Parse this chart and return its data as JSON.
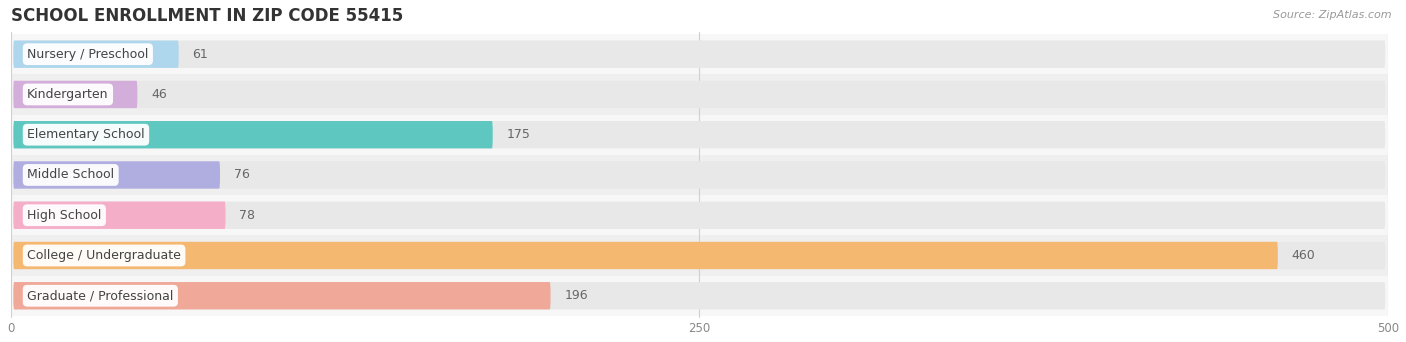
{
  "title": "SCHOOL ENROLLMENT IN ZIP CODE 55415",
  "source": "Source: ZipAtlas.com",
  "categories": [
    "Nursery / Preschool",
    "Kindergarten",
    "Elementary School",
    "Middle School",
    "High School",
    "College / Undergraduate",
    "Graduate / Professional"
  ],
  "values": [
    61,
    46,
    175,
    76,
    78,
    460,
    196
  ],
  "bar_colors": [
    "#aed6ed",
    "#d4aedb",
    "#5ec8c0",
    "#b0aee0",
    "#f4aec8",
    "#f5b870",
    "#f0a898"
  ],
  "bar_bg_color": "#e8e8e8",
  "row_bg_odd": "#f7f7f7",
  "row_bg_even": "#efefef",
  "xlim_max": 500,
  "xticks": [
    0,
    250,
    500
  ],
  "title_fontsize": 12,
  "label_fontsize": 9,
  "value_fontsize": 9,
  "source_fontsize": 8,
  "background_color": "#ffffff"
}
